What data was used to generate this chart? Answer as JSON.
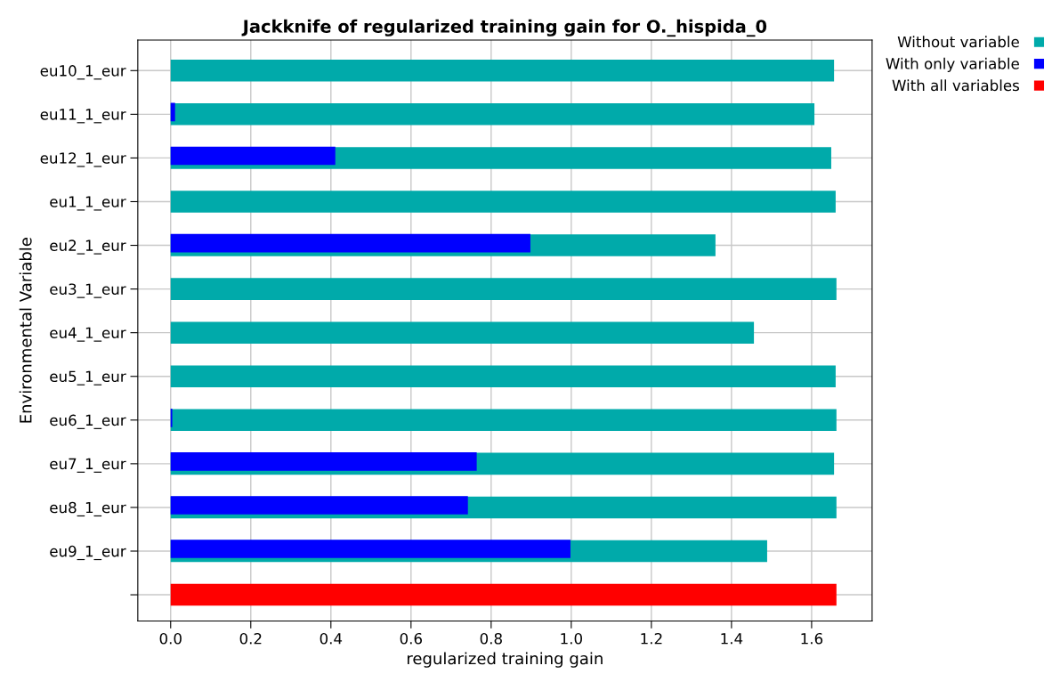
{
  "chart_data": {
    "type": "bar",
    "orientation": "horizontal",
    "title": "Jackknife of regularized training gain for O._hispida_0",
    "xlabel": "regularized training gain",
    "ylabel": "Environmental Variable",
    "categories": [
      "eu10_1_eur",
      "eu11_1_eur",
      "eu12_1_eur",
      "eu1_1_eur",
      "eu2_1_eur",
      "eu3_1_eur",
      "eu4_1_eur",
      "eu5_1_eur",
      "eu6_1_eur",
      "eu7_1_eur",
      "eu8_1_eur",
      "eu9_1_eur",
      null
    ],
    "series": [
      {
        "name": "Without variable",
        "color": "#00aaaa",
        "values": [
          1.656,
          1.607,
          1.649,
          1.66,
          1.36,
          1.662,
          1.456,
          1.66,
          1.662,
          1.656,
          1.662,
          1.489,
          null
        ]
      },
      {
        "name": "With only variable",
        "color": "#0000ff",
        "values": [
          0.0,
          0.011,
          0.411,
          0.0,
          0.898,
          0.0,
          0.0,
          0.0,
          0.004,
          0.764,
          0.742,
          0.998,
          null
        ]
      },
      {
        "name": "With all variables",
        "color": "#ff0000",
        "values": [
          null,
          null,
          null,
          null,
          null,
          null,
          null,
          null,
          null,
          null,
          null,
          null,
          1.662
        ]
      }
    ],
    "xlim": [
      -0.082,
      1.751
    ],
    "xticks": [
      {
        "value": 0,
        "label": "0.0"
      },
      0.2,
      0.4,
      0.6,
      0.8,
      {
        "value": 1,
        "label": "1.0"
      },
      1.2,
      1.4,
      1.6
    ],
    "grid": true,
    "legend": "top right",
    "marker": "square"
  }
}
